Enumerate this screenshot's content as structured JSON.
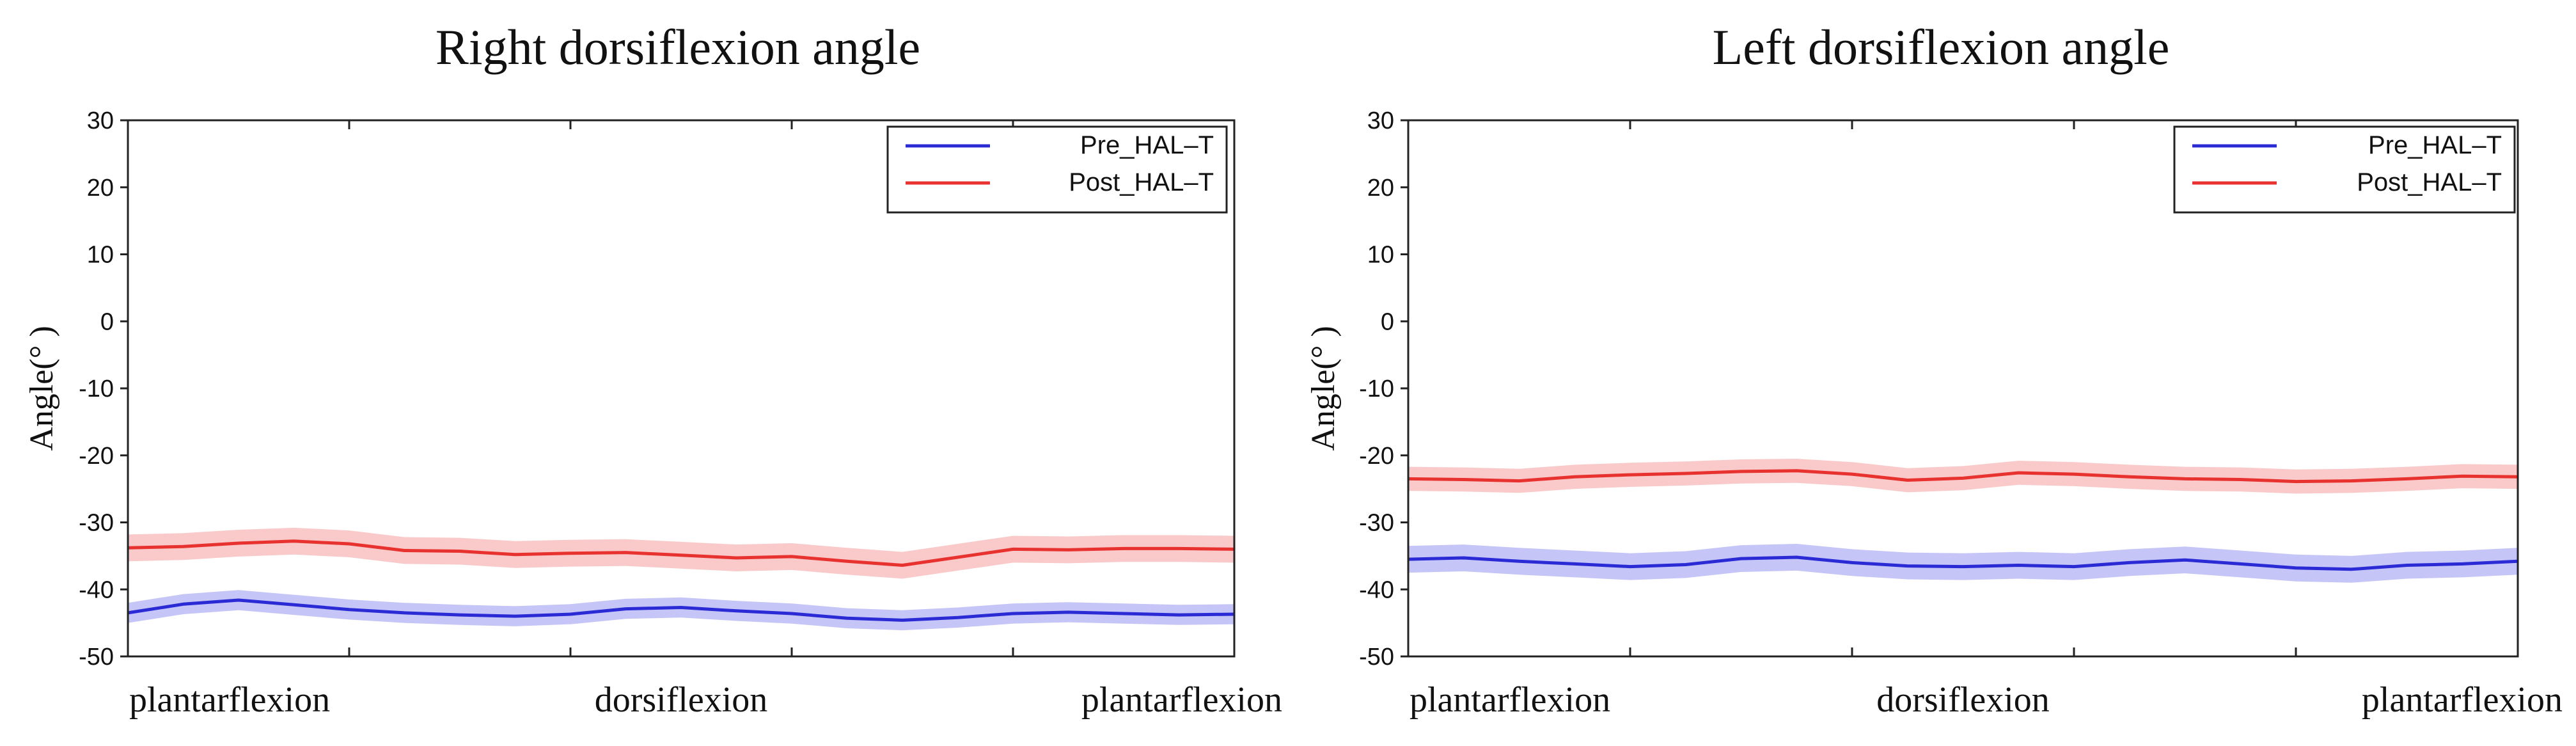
{
  "colors": {
    "pre": "#2b2bd6",
    "post": "#e8322f",
    "pre_band": "#7f7fee",
    "post_band": "#f28a87"
  },
  "chart_data": [
    {
      "type": "line",
      "title": "Right dorsiflexion angle",
      "ylabel": "Angle(°  )",
      "ylim": [
        -50,
        30
      ],
      "yticks": [
        "30",
        "20",
        "10",
        "0",
        "-10",
        "-20",
        "-30",
        "-40",
        "-50"
      ],
      "xcategories": [
        "plantarflexion",
        "dorsiflexion",
        "plantarflexion"
      ],
      "legend": [
        "Pre_HAL–T",
        "Post_HAL–T"
      ],
      "x": [
        0,
        5,
        10,
        15,
        20,
        25,
        30,
        35,
        40,
        45,
        50,
        55,
        60,
        65,
        70,
        75,
        80,
        85,
        90,
        95,
        100
      ],
      "series": [
        {
          "name": "Pre_HAL–T",
          "values": [
            -43.5,
            -42.2,
            -41.6,
            -42.3,
            -43.0,
            -43.5,
            -43.8,
            -44.0,
            -43.7,
            -42.9,
            -42.7,
            -43.2,
            -43.6,
            -44.3,
            -44.6,
            -44.2,
            -43.6,
            -43.4,
            -43.6,
            -43.8,
            -43.7
          ],
          "band": 1.5
        },
        {
          "name": "Post_HAL–T",
          "values": [
            -33.8,
            -33.6,
            -33.1,
            -32.8,
            -33.2,
            -34.2,
            -34.3,
            -34.8,
            -34.6,
            -34.5,
            -34.9,
            -35.3,
            -35.1,
            -35.8,
            -36.4,
            -35.2,
            -34.0,
            -34.1,
            -33.9,
            -33.9,
            -34.0
          ],
          "band": 2.0
        }
      ]
    },
    {
      "type": "line",
      "title": "Left dorsiflexion angle",
      "ylabel": "Angle(°  )",
      "ylim": [
        -50,
        30
      ],
      "yticks": [
        "30",
        "20",
        "10",
        "0",
        "-10",
        "-20",
        "-30",
        "-40",
        "-50"
      ],
      "xcategories": [
        "plantarflexion",
        "dorsiflexion",
        "plantarflexion"
      ],
      "legend": [
        "Pre_HAL–T",
        "Post_HAL–T"
      ],
      "x": [
        0,
        5,
        10,
        15,
        20,
        25,
        30,
        35,
        40,
        45,
        50,
        55,
        60,
        65,
        70,
        75,
        80,
        85,
        90,
        95,
        100
      ],
      "series": [
        {
          "name": "Pre_HAL–T",
          "values": [
            -35.5,
            -35.3,
            -35.8,
            -36.2,
            -36.6,
            -36.3,
            -35.4,
            -35.2,
            -36.0,
            -36.5,
            -36.6,
            -36.4,
            -36.6,
            -36.0,
            -35.6,
            -36.2,
            -36.8,
            -37.0,
            -36.4,
            -36.2,
            -35.8
          ],
          "band": 2.0
        },
        {
          "name": "Post_HAL–T",
          "values": [
            -23.5,
            -23.6,
            -23.8,
            -23.2,
            -22.9,
            -22.7,
            -22.4,
            -22.3,
            -22.8,
            -23.7,
            -23.4,
            -22.6,
            -22.8,
            -23.2,
            -23.5,
            -23.6,
            -23.9,
            -23.8,
            -23.5,
            -23.1,
            -23.2
          ],
          "band": 1.8
        }
      ]
    }
  ]
}
